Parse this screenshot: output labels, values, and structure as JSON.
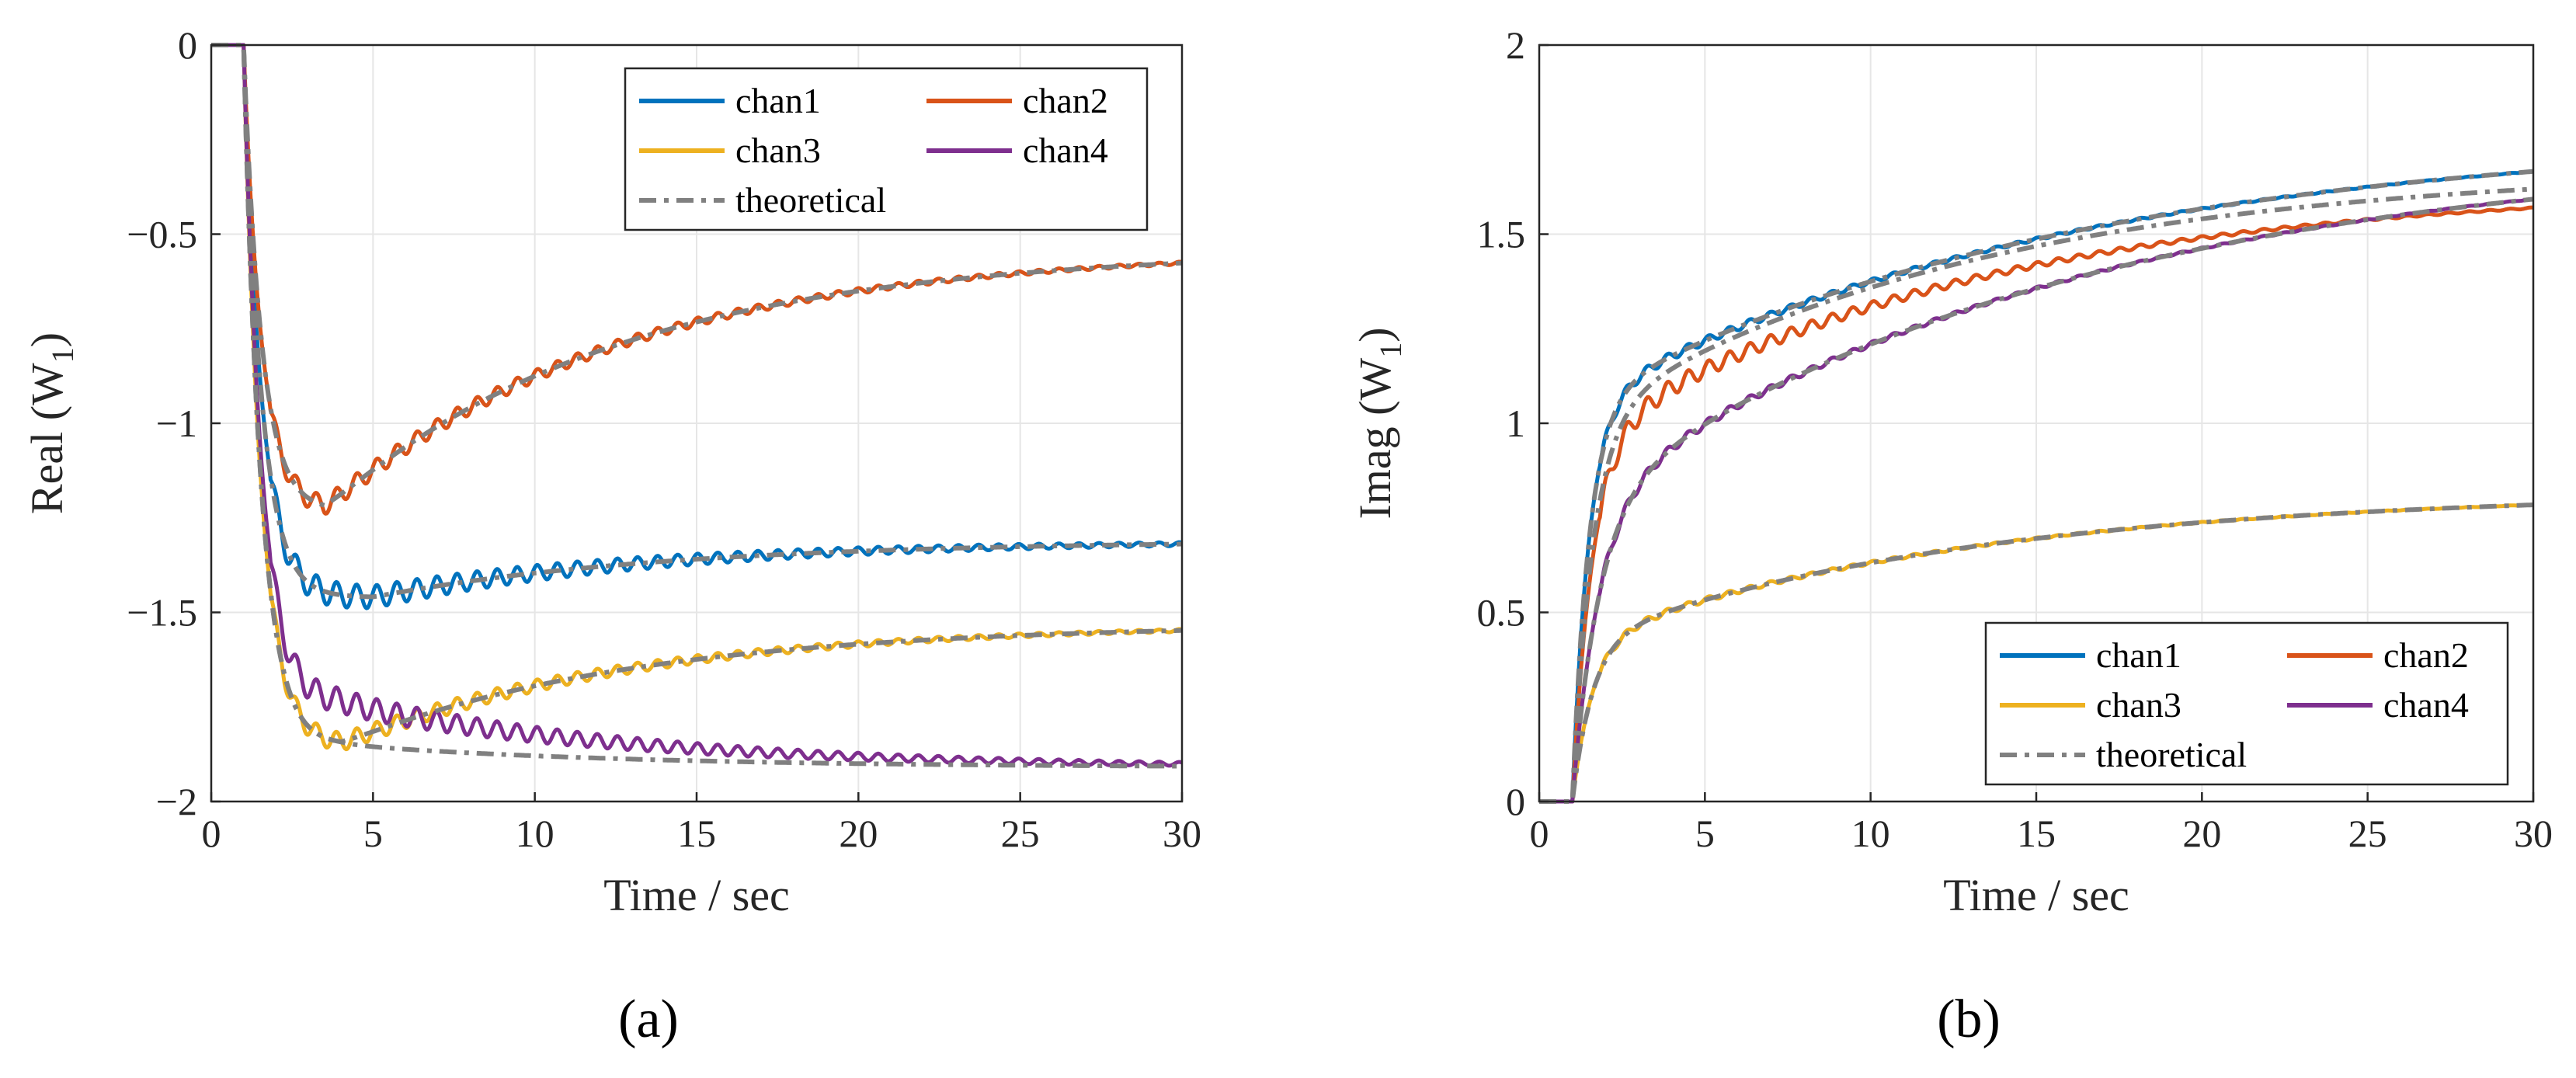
{
  "chart_data": [
    {
      "type": "line",
      "panel_label": "(a)",
      "xlabel": "Time / sec",
      "ylabel": "Real (W",
      "ylabel_sub": "1",
      "ylabel_close": ")",
      "xlim": [
        0,
        30
      ],
      "ylim": [
        -2,
        0
      ],
      "xticks": [
        0,
        5,
        10,
        15,
        20,
        25,
        30
      ],
      "yticks": [
        0,
        -0.5,
        -1,
        -1.5,
        -2
      ],
      "ytick_labels": [
        "0",
        "−0.5",
        "−1",
        "−1.5",
        "−2"
      ],
      "grid": true,
      "legend_position": "top-right",
      "series": [
        {
          "name": "chan1",
          "color": "#0072BD",
          "style": "solid",
          "model": "min_decay",
          "start": 1,
          "a": -1.46,
          "b": -1.31,
          "tm": 5,
          "osc": 0.04
        },
        {
          "name": "chan2",
          "color": "#D95319",
          "style": "solid",
          "model": "min_decay",
          "start": 1,
          "a": -1.23,
          "b": -0.54,
          "tm": 3.5,
          "osc": 0.03
        },
        {
          "name": "chan3",
          "color": "#EDB120",
          "style": "solid",
          "model": "min_decay",
          "start": 1,
          "a": -1.85,
          "b": -1.53,
          "tm": 4,
          "osc": 0.03
        },
        {
          "name": "chan4",
          "color": "#7E2F8E",
          "style": "solid",
          "model": "min_decay",
          "start": 1,
          "a": -1.74,
          "b": -1.91,
          "tm": 4,
          "osc": 0.04
        },
        {
          "name": "theoretical",
          "color": "#808080",
          "style": "dashdot",
          "model": "min_decay",
          "start": 1,
          "a": -1.46,
          "b": -1.31,
          "tm": 5,
          "osc": 0
        },
        {
          "name": "theoretical",
          "color": "#808080",
          "style": "dashdot",
          "model": "min_decay",
          "start": 1,
          "a": -1.23,
          "b": -0.54,
          "tm": 3.5,
          "osc": 0
        },
        {
          "name": "theoretical",
          "color": "#808080",
          "style": "dashdot",
          "model": "min_decay",
          "start": 1,
          "a": -1.85,
          "b": -1.53,
          "tm": 4,
          "osc": 0
        },
        {
          "name": "theoretical",
          "color": "#808080",
          "style": "dashdot",
          "model": "min_decay",
          "start": 1,
          "a": -1.85,
          "b": -1.91,
          "tm": 4,
          "osc": 0
        }
      ]
    },
    {
      "type": "line",
      "panel_label": "(b)",
      "xlabel": "Time / sec",
      "ylabel": "Imag (W",
      "ylabel_sub": "1",
      "ylabel_close": ")",
      "xlim": [
        0,
        30
      ],
      "ylim": [
        0,
        2
      ],
      "xticks": [
        0,
        5,
        10,
        15,
        20,
        25,
        30
      ],
      "yticks": [
        0,
        0.5,
        1,
        1.5,
        2
      ],
      "ytick_labels": [
        "0",
        "0.5",
        "1",
        "1.5",
        "2"
      ],
      "grid": true,
      "legend_position": "bottom-right",
      "series": [
        {
          "name": "chan1",
          "color": "#0072BD",
          "style": "solid",
          "model": "rise",
          "start": 1,
          "k1": 1.05,
          "t1": 0.5,
          "k2": 0.72,
          "t2": 15,
          "osc": 0.015
        },
        {
          "name": "chan2",
          "color": "#D95319",
          "style": "solid",
          "model": "rise",
          "start": 1,
          "k1": 0.95,
          "t1": 0.6,
          "k2": 0.68,
          "t2": 12,
          "osc": 0.03
        },
        {
          "name": "chan3",
          "color": "#EDB120",
          "style": "solid",
          "model": "rise",
          "start": 1,
          "k1": 0.42,
          "t1": 0.6,
          "k2": 0.4,
          "t2": 12,
          "osc": 0.01
        },
        {
          "name": "chan4",
          "color": "#7E2F8E",
          "style": "solid",
          "model": "rise",
          "start": 1,
          "k1": 0.78,
          "t1": 0.8,
          "k2": 0.95,
          "t2": 15,
          "osc": 0.015
        },
        {
          "name": "theoretical",
          "color": "#808080",
          "style": "dashdot",
          "model": "rise",
          "start": 1,
          "k1": 1.05,
          "t1": 0.5,
          "k2": 0.72,
          "t2": 15,
          "osc": 0
        },
        {
          "name": "theoretical",
          "color": "#808080",
          "style": "dashdot",
          "model": "rise",
          "start": 1,
          "k1": 1.0,
          "t1": 0.6,
          "k2": 0.68,
          "t2": 12,
          "osc": 0
        },
        {
          "name": "theoretical",
          "color": "#808080",
          "style": "dashdot",
          "model": "rise",
          "start": 1,
          "k1": 0.42,
          "t1": 0.6,
          "k2": 0.4,
          "t2": 12,
          "osc": 0
        },
        {
          "name": "theoretical",
          "color": "#808080",
          "style": "dashdot",
          "model": "rise",
          "start": 1,
          "k1": 0.78,
          "t1": 0.8,
          "k2": 0.95,
          "t2": 15,
          "osc": 0
        }
      ]
    }
  ],
  "legend": {
    "entries": [
      {
        "label": "chan1",
        "color": "#0072BD",
        "style": "solid"
      },
      {
        "label": "chan2",
        "color": "#D95319",
        "style": "solid"
      },
      {
        "label": "chan3",
        "color": "#EDB120",
        "style": "solid"
      },
      {
        "label": "chan4",
        "color": "#7E2F8E",
        "style": "solid"
      },
      {
        "label": "theoretical",
        "color": "#808080",
        "style": "dashdot"
      }
    ]
  }
}
